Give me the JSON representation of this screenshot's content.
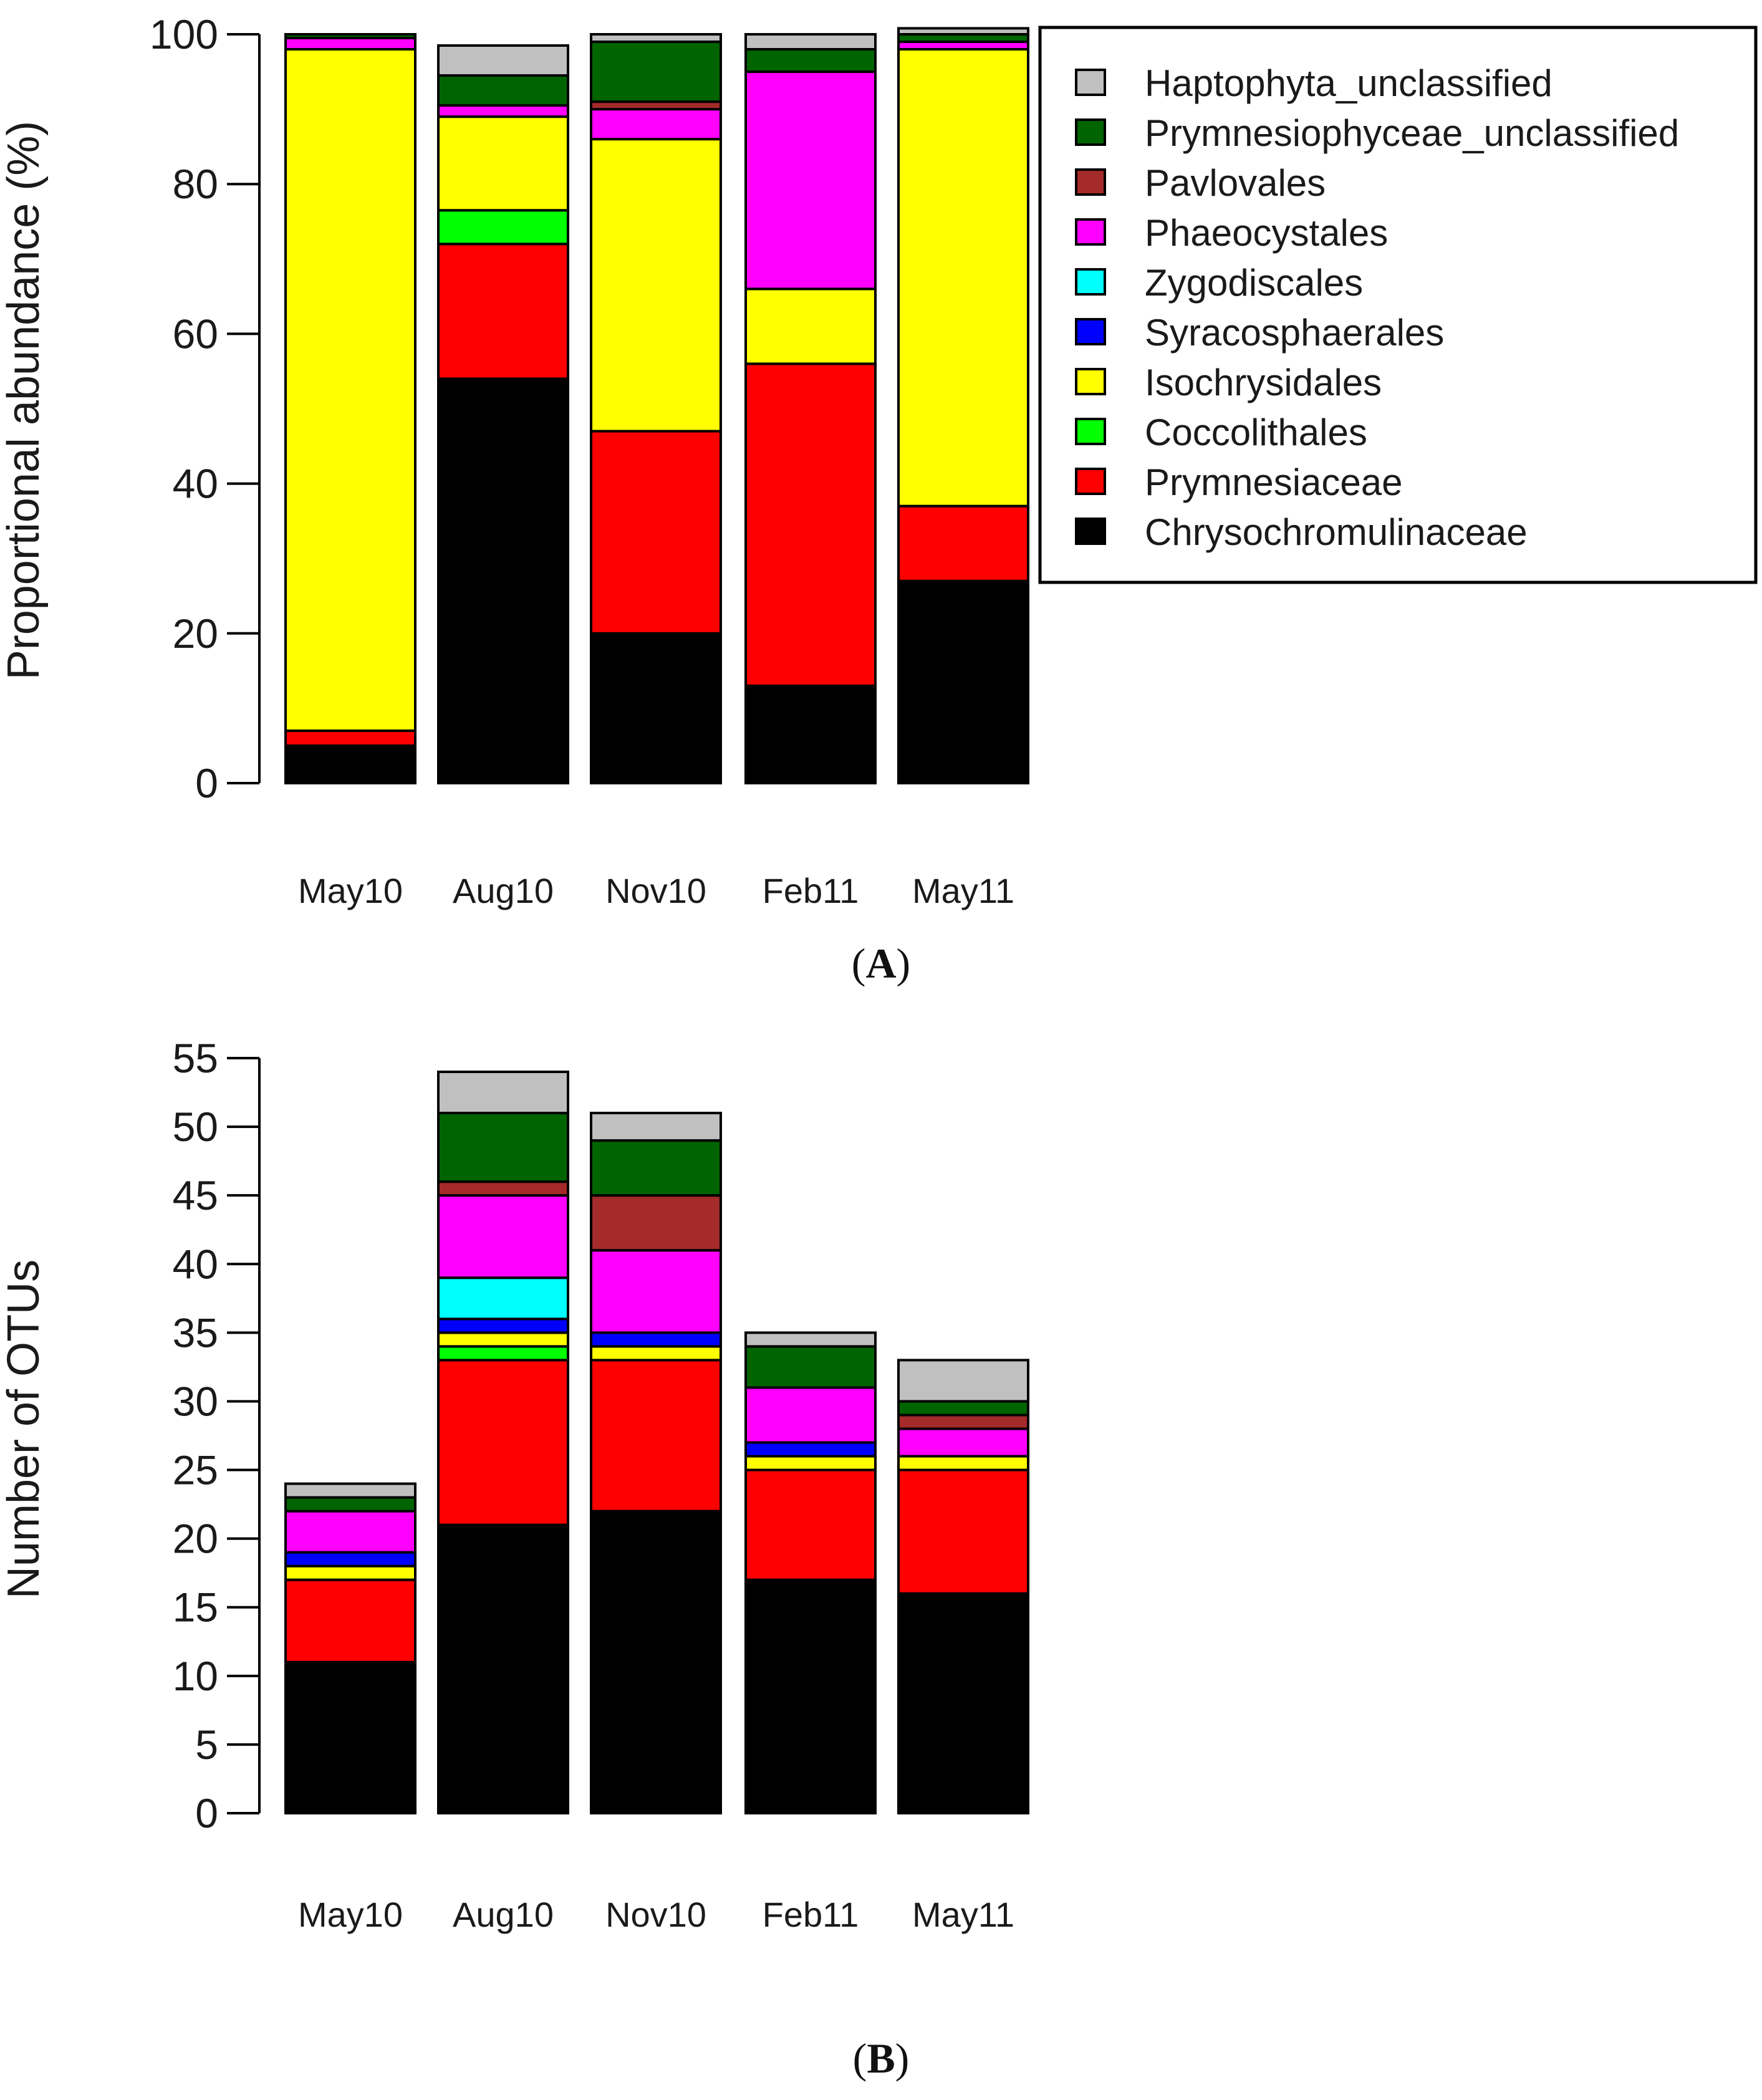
{
  "categories": [
    "May10",
    "Aug10",
    "Nov10",
    "Feb11",
    "May11"
  ],
  "colors": {
    "Haptophyta_unclassified": "#c0c0c0",
    "Prymnesiophyceae_unclassified": "#006400",
    "Pavlovales": "#a52a2a",
    "Phaeocystales": "#ff00ff",
    "Zygodiscales": "#00ffff",
    "Syracosphaerales": "#0000ff",
    "Isochrysidales": "#ffff00",
    "Coccolithales": "#00ff00",
    "Prymnesiaceae": "#ff0000",
    "Chrysochromulinaceae": "#000000"
  },
  "legend": {
    "entries": [
      "Haptophyta_unclassified",
      "Prymnesiophyceae_unclassified",
      "Pavlovales",
      "Phaeocystales",
      "Zygodiscales",
      "Syracosphaerales",
      "Isochrysidales",
      "Coccolithales",
      "Prymnesiaceae",
      "Chrysochromulinaceae"
    ]
  },
  "chart_data": [
    {
      "panel": "A",
      "type": "bar",
      "stacked": true,
      "ylabel": "Proportional abundance (%)",
      "ylim": [
        0,
        100
      ],
      "yticks": [
        0,
        20,
        40,
        60,
        80,
        100
      ],
      "categories": [
        "May10",
        "Aug10",
        "Nov10",
        "Feb11",
        "May11"
      ],
      "series": [
        {
          "name": "Chrysochromulinaceae",
          "values": [
            5,
            54,
            20,
            13,
            27
          ]
        },
        {
          "name": "Prymnesiaceae",
          "values": [
            2,
            18,
            27,
            43,
            10
          ]
        },
        {
          "name": "Coccolithales",
          "values": [
            0,
            4.5,
            0,
            0,
            0
          ]
        },
        {
          "name": "Isochrysidales",
          "values": [
            91,
            12.5,
            39,
            10,
            61
          ]
        },
        {
          "name": "Syracosphaerales",
          "values": [
            0,
            0,
            0,
            0,
            0
          ]
        },
        {
          "name": "Zygodiscales",
          "values": [
            0,
            0,
            0,
            0,
            0
          ]
        },
        {
          "name": "Phaeocystales",
          "values": [
            1.5,
            1.5,
            4,
            29,
            1
          ]
        },
        {
          "name": "Pavlovales",
          "values": [
            0,
            0,
            1,
            0,
            0
          ]
        },
        {
          "name": "Prymnesiophyceae_unclassified",
          "values": [
            0.5,
            4,
            8,
            3,
            1
          ]
        },
        {
          "name": "Haptophyta_unclassified",
          "values": [
            0,
            4,
            1,
            2,
            0.8
          ]
        }
      ]
    },
    {
      "panel": "B",
      "type": "bar",
      "stacked": true,
      "ylabel": "Number of OTUs",
      "ylim": [
        0,
        55
      ],
      "yticks": [
        0,
        5,
        10,
        15,
        20,
        25,
        30,
        35,
        40,
        45,
        50,
        55
      ],
      "categories": [
        "May10",
        "Aug10",
        "Nov10",
        "Feb11",
        "May11"
      ],
      "series": [
        {
          "name": "Chrysochromulinaceae",
          "values": [
            11,
            21,
            22,
            17,
            16
          ]
        },
        {
          "name": "Prymnesiaceae",
          "values": [
            6,
            12,
            11,
            8,
            9
          ]
        },
        {
          "name": "Coccolithales",
          "values": [
            0,
            1,
            0,
            0,
            0
          ]
        },
        {
          "name": "Isochrysidales",
          "values": [
            1,
            1,
            1,
            1,
            1
          ]
        },
        {
          "name": "Syracosphaerales",
          "values": [
            1,
            1,
            1,
            1,
            0
          ]
        },
        {
          "name": "Zygodiscales",
          "values": [
            0,
            3,
            0,
            0,
            0
          ]
        },
        {
          "name": "Phaeocystales",
          "values": [
            3,
            6,
            6,
            4,
            2
          ]
        },
        {
          "name": "Pavlovales",
          "values": [
            0,
            1,
            4,
            0,
            1
          ]
        },
        {
          "name": "Prymnesiophyceae_unclassified",
          "values": [
            1,
            5,
            4,
            3,
            1
          ]
        },
        {
          "name": "Haptophyta_unclassified",
          "values": [
            1,
            3,
            2,
            1,
            3
          ]
        }
      ]
    }
  ],
  "panel_labels": {
    "a": "A",
    "b": "B"
  }
}
